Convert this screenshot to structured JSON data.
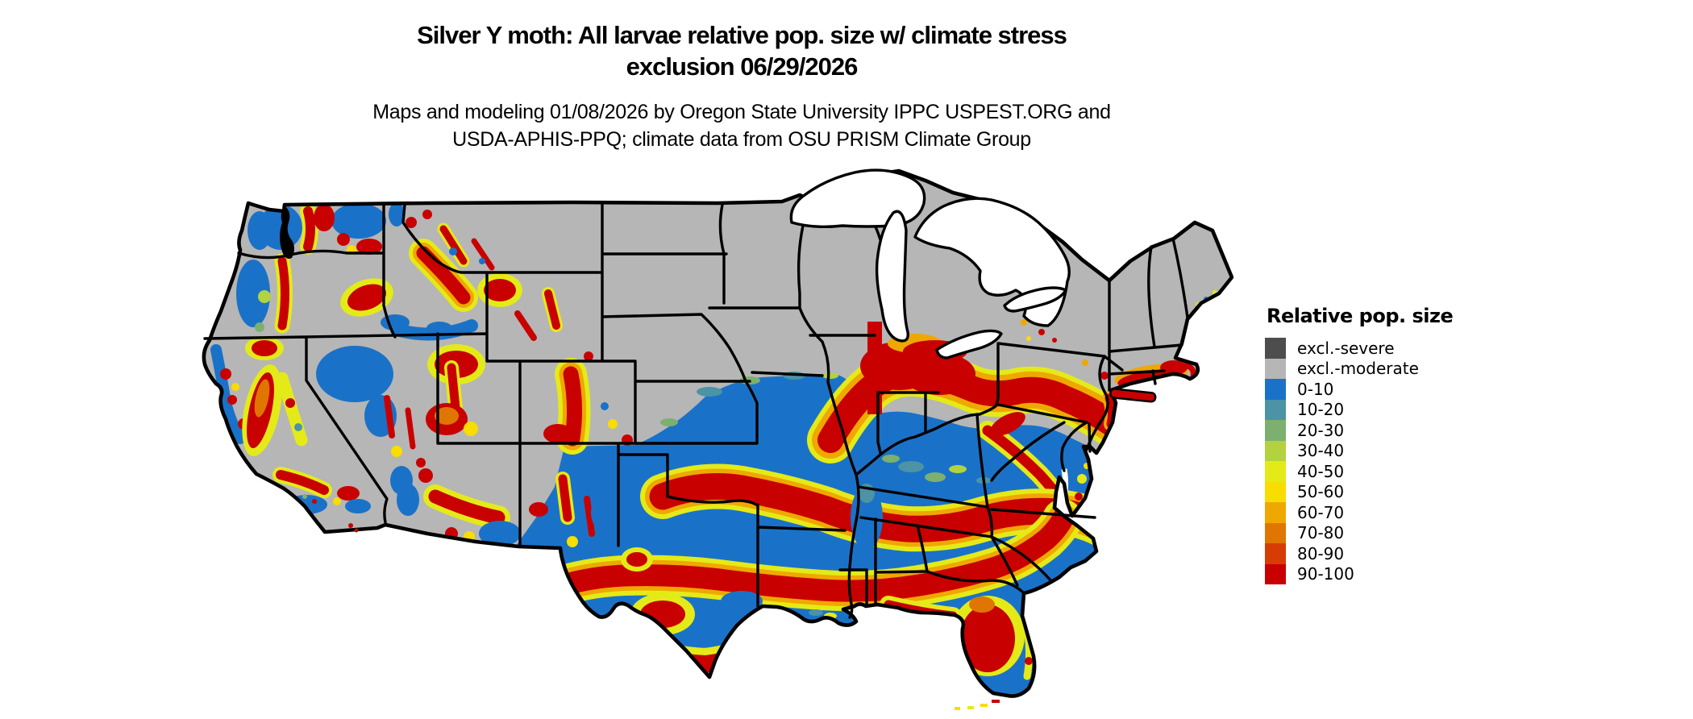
{
  "title": {
    "line1": "Silver Y moth: All larvae relative pop. size w/ climate stress",
    "line2": "exclusion 06/29/2026"
  },
  "subtitle": {
    "line1": "Maps and modeling 01/08/2026 by Oregon State University IPPC USPEST.ORG and",
    "line2": "USDA-APHIS-PPQ; climate data from OSU PRISM Climate Group"
  },
  "legend": {
    "title": "Relative pop. size",
    "items": [
      {
        "label": "excl.-severe",
        "color": "#4d4d4d"
      },
      {
        "label": "excl.-moderate",
        "color": "#b6b6b6"
      },
      {
        "label": "0-10",
        "color": "#1a72c8"
      },
      {
        "label": "10-20",
        "color": "#4b93a5"
      },
      {
        "label": "20-30",
        "color": "#7db06e"
      },
      {
        "label": "30-40",
        "color": "#b3d23f"
      },
      {
        "label": "40-50",
        "color": "#e4ea18"
      },
      {
        "label": "50-60",
        "color": "#f9dc00"
      },
      {
        "label": "60-70",
        "color": "#efa802"
      },
      {
        "label": "70-80",
        "color": "#e07601"
      },
      {
        "label": "80-90",
        "color": "#d63c04"
      },
      {
        "label": "90-100",
        "color": "#c90000"
      }
    ]
  },
  "map": {
    "region": "Continental United States",
    "border_color": "#000000",
    "water_color": "#ffffff",
    "excluded_fill": "#b6b6b6"
  }
}
